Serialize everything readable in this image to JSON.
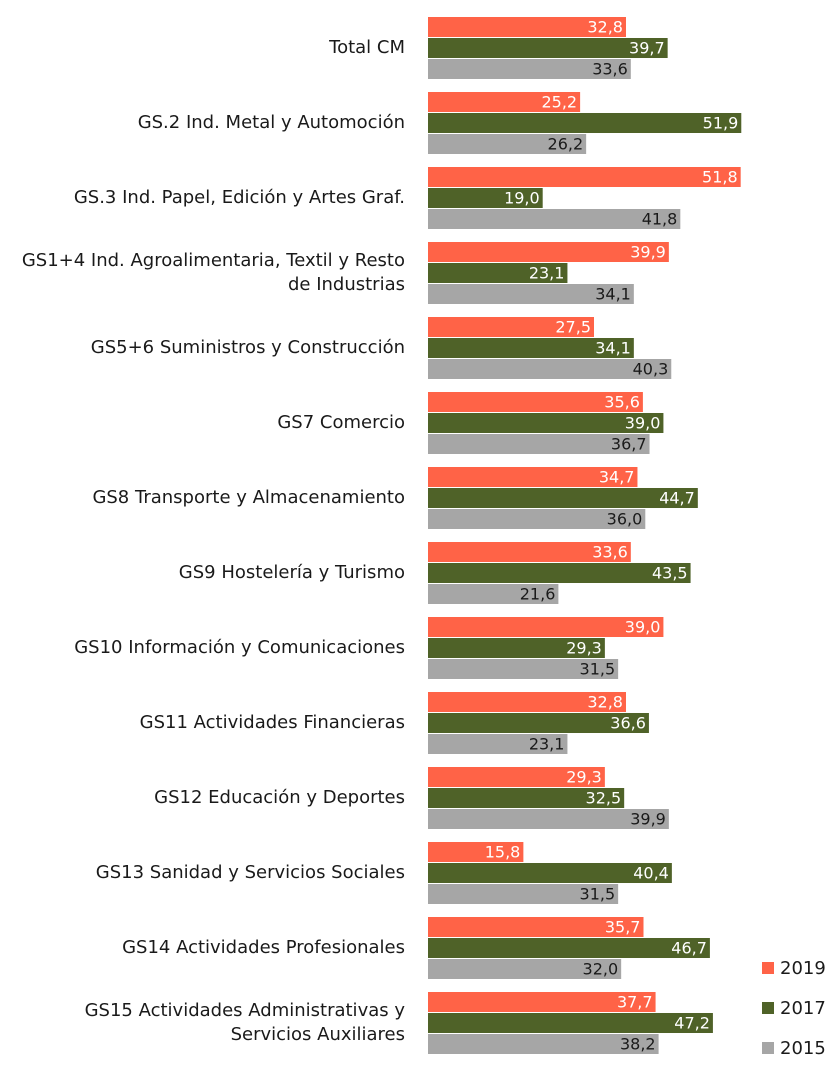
{
  "chart_data": {
    "type": "bar",
    "orientation": "horizontal",
    "categories": [
      "Total CM",
      "GS.2 Ind. Metal y Automoción",
      "GS.3 Ind. Papel, Edición y Artes Graf.",
      "GS1+4 Ind. Agroalimentaria, Textil y Resto de Industrias",
      "GS5+6 Suministros y Construcción",
      "GS7 Comercio",
      "GS8 Transporte y Almacenamiento",
      "GS9 Hostelería y Turismo",
      "GS10 Información y Comunicaciones",
      "GS11 Actividades Financieras",
      "GS12 Educación y Deportes",
      "GS13 Sanidad y Servicios Sociales",
      "GS14 Actividades Profesionales",
      "GS15 Actividades Administrativas y Servicios Auxiliares"
    ],
    "series": [
      {
        "name": "2019",
        "color": "#ff6347",
        "label_color": "#ffffff",
        "values": [
          32.8,
          25.2,
          51.8,
          39.9,
          27.5,
          35.6,
          34.7,
          33.6,
          39.0,
          32.8,
          29.3,
          15.8,
          35.7,
          37.7
        ],
        "value_labels": [
          "32,8",
          "25,2",
          "51,8",
          "39,9",
          "27,5",
          "35,6",
          "34,7",
          "33,6",
          "39,0",
          "32,8",
          "29,3",
          "15,8",
          "35,7",
          "37,7"
        ]
      },
      {
        "name": "2017",
        "color": "#4f6228",
        "label_color": "#ffffff",
        "values": [
          39.7,
          51.9,
          19.0,
          23.1,
          34.1,
          39.0,
          44.7,
          43.5,
          29.3,
          36.6,
          32.5,
          40.4,
          46.7,
          47.2
        ],
        "value_labels": [
          "39,7",
          "51,9",
          "19,0",
          "23,1",
          "34,1",
          "39,0",
          "44,7",
          "43,5",
          "29,3",
          "36,6",
          "32,5",
          "40,4",
          "46,7",
          "47,2"
        ]
      },
      {
        "name": "2015",
        "color": "#a6a6a6",
        "label_color": "#1a1a1a",
        "values": [
          33.6,
          26.2,
          41.8,
          34.1,
          40.3,
          36.7,
          36.0,
          21.6,
          31.5,
          23.1,
          39.9,
          31.5,
          32.0,
          38.2
        ],
        "value_labels": [
          "33,6",
          "26,2",
          "41,8",
          "34,1",
          "40,3",
          "36,7",
          "36,0",
          "21,6",
          "31,5",
          "23,1",
          "39,9",
          "31,5",
          "32,0",
          "38,2"
        ]
      }
    ],
    "xlim": [
      0,
      55
    ],
    "legend": "bottom-right"
  }
}
